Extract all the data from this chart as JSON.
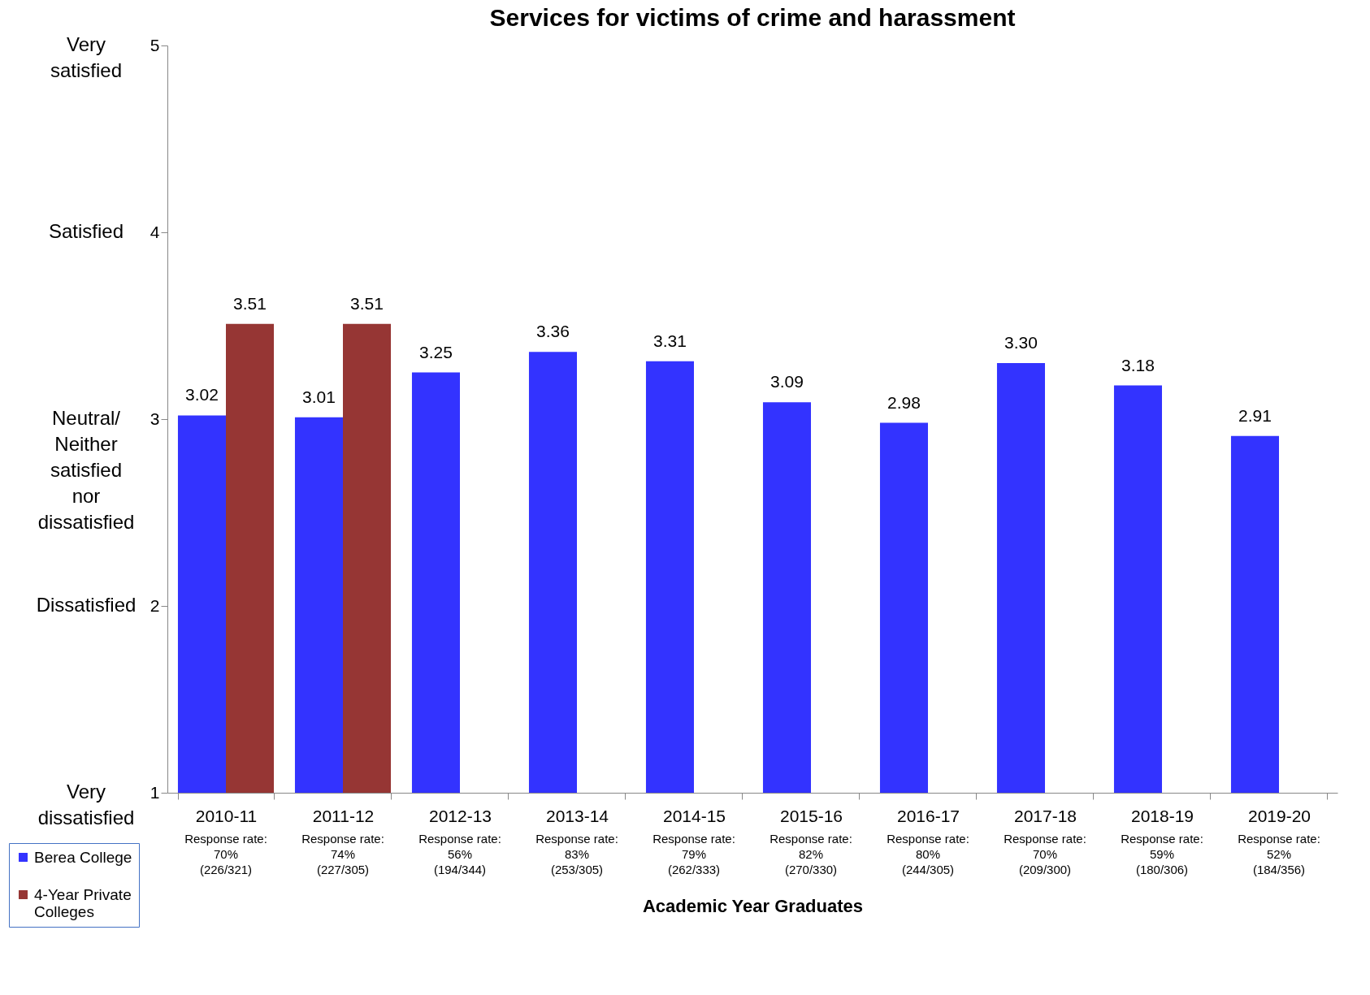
{
  "chart_data": {
    "type": "bar",
    "title": "Services for victims of crime and harassment",
    "xlabel": "Academic Year Graduates",
    "categories": [
      "2010-11",
      "2011-12",
      "2012-13",
      "2013-14",
      "2014-15",
      "2015-16",
      "2016-17",
      "2017-18",
      "2018-19",
      "2019-20"
    ],
    "series": [
      {
        "name": "Berea College",
        "color": "#3333ff",
        "values": [
          3.02,
          3.01,
          3.25,
          3.36,
          3.31,
          3.09,
          2.98,
          3.3,
          3.18,
          2.91
        ],
        "value_labels": [
          "3.02",
          "3.01",
          "3.25",
          "3.36",
          "3.31",
          "3.09",
          "2.98",
          "3.30",
          "3.18",
          "2.91"
        ]
      },
      {
        "name": "4-Year Private Colleges",
        "color": "#963634",
        "values": [
          3.51,
          3.51,
          null,
          null,
          null,
          null,
          null,
          null,
          null,
          null
        ],
        "value_labels": [
          "3.51",
          "3.51",
          null,
          null,
          null,
          null,
          null,
          null,
          null,
          null
        ]
      }
    ],
    "ylim": [
      1,
      5
    ],
    "yticks": [
      1,
      2,
      3,
      4,
      5
    ],
    "grid": false,
    "legend": "bottom left",
    "annotations": [
      "Very satisfied",
      "Satisfied",
      "Neutral/ Neither satisfied nor dissatisfied",
      "Dissatisfied",
      "Very dissatisfied",
      "Response rate:\n70%\n(226/321)",
      "Response rate:\n74%\n(227/305)",
      "Response rate:\n56%\n(194/344)",
      "Response rate:\n83%\n(253/305)",
      "Response rate:\n79%\n(262/333)",
      "Response rate:\n82%\n(270/330)",
      "Response rate:\n80%\n(244/305)",
      "Response rate:\n70%\n(209/300)",
      "Response rate:\n59%\n(180/306)",
      "Response rate:\n52%\n(184/356)"
    ]
  }
}
